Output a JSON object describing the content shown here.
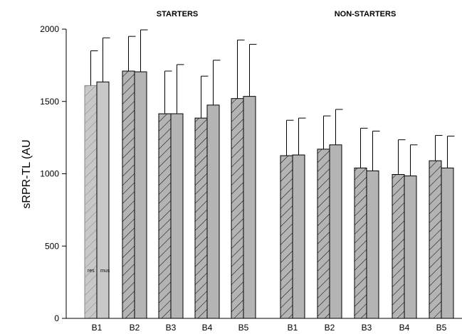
{
  "chart_data": {
    "type": "bar",
    "ylabel": "sRPR-TL (AU",
    "ylim": [
      0,
      2000
    ],
    "yticks": [
      0,
      500,
      1000,
      1500,
      2000
    ],
    "groups": [
      {
        "title": "STARTERS",
        "categories": [
          "B1",
          "B2",
          "B3",
          "B4",
          "B5"
        ],
        "series": [
          {
            "name": "res",
            "pattern": "hatched",
            "values": [
              1610,
              1710,
              1415,
              1385,
              1520
            ],
            "errors": [
              240,
              240,
              295,
              290,
              405
            ]
          },
          {
            "name": "mus",
            "pattern": "solid",
            "values": [
              1635,
              1705,
              1415,
              1475,
              1535
            ],
            "errors": [
              305,
              290,
              340,
              310,
              360
            ]
          }
        ]
      },
      {
        "title": "NON-STARTERS",
        "categories": [
          "B1",
          "B2",
          "B3",
          "B4",
          "B5"
        ],
        "series": [
          {
            "name": "res",
            "pattern": "hatched",
            "values": [
              1125,
              1170,
              1040,
              995,
              1090
            ],
            "errors": [
              245,
              230,
              275,
              240,
              175
            ]
          },
          {
            "name": "mus",
            "pattern": "solid",
            "values": [
              1130,
              1200,
              1020,
              985,
              1040
            ],
            "errors": [
              255,
              245,
              275,
              215,
              220
            ]
          }
        ]
      }
    ],
    "colors": {
      "bar_fill": "#b4b4b4",
      "stroke": "#000000",
      "legend_fill": "#c8c8c8"
    }
  }
}
